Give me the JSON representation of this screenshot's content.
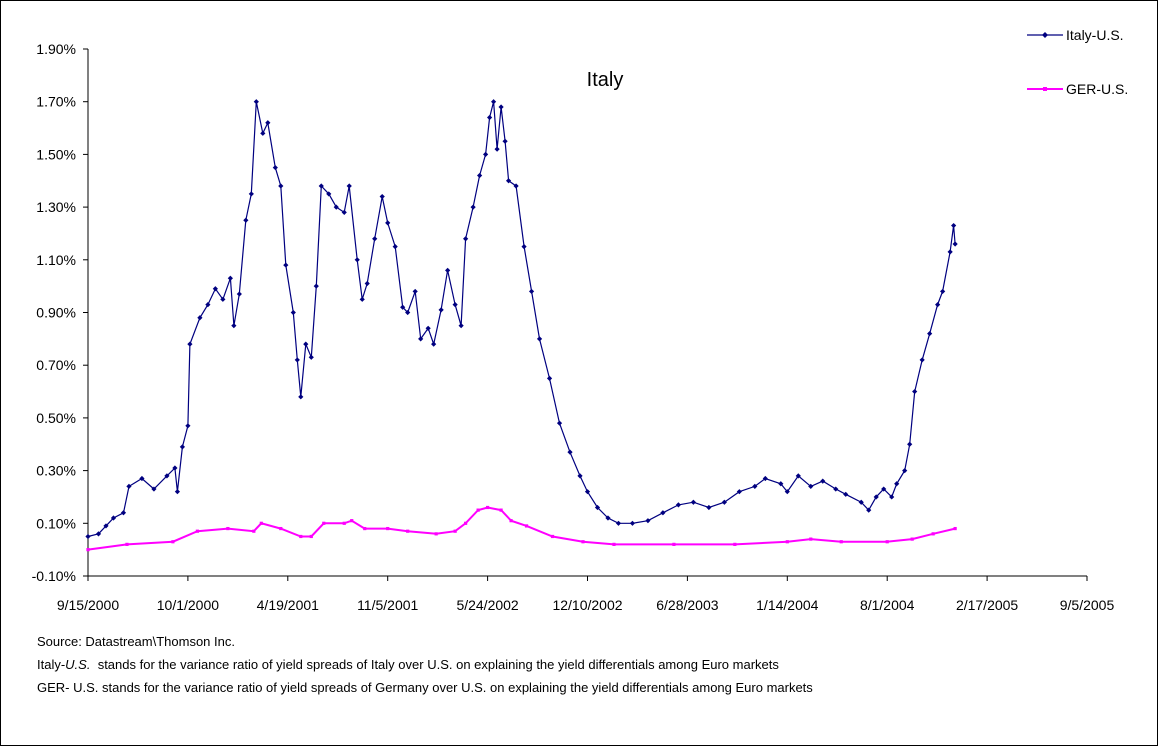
{
  "chart_data": {
    "type": "line",
    "title": "Italy",
    "xlabel": "",
    "ylabel": "",
    "x_tick_labels": [
      "9/15/2000",
      "10/1/2000",
      "4/19/2001",
      "11/5/2001",
      "5/24/2002",
      "12/10/2002",
      "6/28/2003",
      "1/14/2004",
      "8/1/2004",
      "2/17/2005",
      "9/5/2005"
    ],
    "y_tick_labels": [
      "-0.10%",
      "0.10%",
      "0.30%",
      "0.50%",
      "0.70%",
      "0.90%",
      "1.10%",
      "1.30%",
      "1.50%",
      "1.70%",
      "1.90%"
    ],
    "ylim": [
      -0.1,
      1.9
    ],
    "xlim": [
      "2000-03-15",
      "2005-09-05"
    ],
    "legend_position": "top-right",
    "grid": false,
    "series": [
      {
        "name": "Italy-U.S.",
        "color": "#000080",
        "marker": "diamond",
        "points": [
          [
            "2000-03-15",
            0.05
          ],
          [
            "2000-04-05",
            0.06
          ],
          [
            "2000-04-20",
            0.09
          ],
          [
            "2000-05-05",
            0.12
          ],
          [
            "2000-05-25",
            0.14
          ],
          [
            "2000-06-05",
            0.24
          ],
          [
            "2000-07-01",
            0.27
          ],
          [
            "2000-07-25",
            0.23
          ],
          [
            "2000-08-20",
            0.28
          ],
          [
            "2000-09-05",
            0.31
          ],
          [
            "2000-09-10",
            0.22
          ],
          [
            "2000-09-20",
            0.39
          ],
          [
            "2000-10-01",
            0.47
          ],
          [
            "2000-10-05",
            0.78
          ],
          [
            "2000-10-25",
            0.88
          ],
          [
            "2000-11-10",
            0.93
          ],
          [
            "2000-11-25",
            0.99
          ],
          [
            "2000-12-10",
            0.95
          ],
          [
            "2000-12-25",
            1.03
          ],
          [
            "2001-01-01",
            0.85
          ],
          [
            "2001-01-12",
            0.97
          ],
          [
            "2001-01-25",
            1.25
          ],
          [
            "2001-02-05",
            1.35
          ],
          [
            "2001-02-15",
            1.7
          ],
          [
            "2001-02-28",
            1.58
          ],
          [
            "2001-03-10",
            1.62
          ],
          [
            "2001-03-25",
            1.45
          ],
          [
            "2001-04-05",
            1.38
          ],
          [
            "2001-04-15",
            1.08
          ],
          [
            "2001-04-30",
            0.9
          ],
          [
            "2001-05-08",
            0.72
          ],
          [
            "2001-05-15",
            0.58
          ],
          [
            "2001-05-25",
            0.78
          ],
          [
            "2001-06-05",
            0.73
          ],
          [
            "2001-06-15",
            1.0
          ],
          [
            "2001-06-25",
            1.38
          ],
          [
            "2001-07-10",
            1.35
          ],
          [
            "2001-07-25",
            1.3
          ],
          [
            "2001-08-10",
            1.28
          ],
          [
            "2001-08-20",
            1.38
          ],
          [
            "2001-09-05",
            1.1
          ],
          [
            "2001-09-15",
            0.95
          ],
          [
            "2001-09-25",
            1.01
          ],
          [
            "2001-10-10",
            1.18
          ],
          [
            "2001-10-25",
            1.34
          ],
          [
            "2001-11-05",
            1.24
          ],
          [
            "2001-11-20",
            1.15
          ],
          [
            "2001-12-05",
            0.92
          ],
          [
            "2001-12-15",
            0.9
          ],
          [
            "2001-12-30",
            0.98
          ],
          [
            "2002-01-10",
            0.8
          ],
          [
            "2002-01-25",
            0.84
          ],
          [
            "2002-02-05",
            0.78
          ],
          [
            "2002-02-20",
            0.91
          ],
          [
            "2002-03-05",
            1.06
          ],
          [
            "2002-03-20",
            0.93
          ],
          [
            "2002-04-01",
            0.85
          ],
          [
            "2002-04-10",
            1.18
          ],
          [
            "2002-04-25",
            1.3
          ],
          [
            "2002-05-08",
            1.42
          ],
          [
            "2002-05-20",
            1.5
          ],
          [
            "2002-05-28",
            1.64
          ],
          [
            "2002-06-05",
            1.7
          ],
          [
            "2002-06-12",
            1.52
          ],
          [
            "2002-06-20",
            1.68
          ],
          [
            "2002-06-28",
            1.55
          ],
          [
            "2002-07-05",
            1.4
          ],
          [
            "2002-07-20",
            1.38
          ],
          [
            "2002-08-05",
            1.15
          ],
          [
            "2002-08-20",
            0.98
          ],
          [
            "2002-09-05",
            0.8
          ],
          [
            "2002-09-25",
            0.65
          ],
          [
            "2002-10-15",
            0.48
          ],
          [
            "2002-11-05",
            0.37
          ],
          [
            "2002-11-25",
            0.28
          ],
          [
            "2002-12-10",
            0.22
          ],
          [
            "2002-12-30",
            0.16
          ],
          [
            "2003-01-20",
            0.12
          ],
          [
            "2003-02-10",
            0.1
          ],
          [
            "2003-03-10",
            0.1
          ],
          [
            "2003-04-10",
            0.11
          ],
          [
            "2003-05-10",
            0.14
          ],
          [
            "2003-06-10",
            0.17
          ],
          [
            "2003-07-10",
            0.18
          ],
          [
            "2003-08-10",
            0.16
          ],
          [
            "2003-09-10",
            0.18
          ],
          [
            "2003-10-10",
            0.22
          ],
          [
            "2003-11-10",
            0.24
          ],
          [
            "2003-12-01",
            0.27
          ],
          [
            "2004-01-01",
            0.25
          ],
          [
            "2004-01-14",
            0.22
          ],
          [
            "2004-02-05",
            0.28
          ],
          [
            "2004-03-01",
            0.24
          ],
          [
            "2004-03-25",
            0.26
          ],
          [
            "2004-04-20",
            0.23
          ],
          [
            "2004-05-10",
            0.21
          ],
          [
            "2004-06-10",
            0.18
          ],
          [
            "2004-06-25",
            0.15
          ],
          [
            "2004-07-10",
            0.2
          ],
          [
            "2004-07-25",
            0.23
          ],
          [
            "2004-08-10",
            0.2
          ],
          [
            "2004-08-20",
            0.25
          ],
          [
            "2004-09-05",
            0.3
          ],
          [
            "2004-09-15",
            0.4
          ],
          [
            "2004-09-25",
            0.6
          ],
          [
            "2004-10-10",
            0.72
          ],
          [
            "2004-10-25",
            0.82
          ],
          [
            "2004-11-10",
            0.93
          ],
          [
            "2004-11-20",
            0.98
          ],
          [
            "2004-12-05",
            1.13
          ],
          [
            "2004-12-12",
            1.23
          ],
          [
            "2004-12-15",
            1.16
          ]
        ]
      },
      {
        "name": "GER-U.S.",
        "color": "#FF00FF",
        "marker": "square",
        "points": [
          [
            "2000-03-15",
            0.0
          ],
          [
            "2000-06-01",
            0.02
          ],
          [
            "2000-09-01",
            0.03
          ],
          [
            "2000-10-20",
            0.07
          ],
          [
            "2000-12-20",
            0.08
          ],
          [
            "2001-02-10",
            0.07
          ],
          [
            "2001-02-25",
            0.1
          ],
          [
            "2001-04-05",
            0.08
          ],
          [
            "2001-05-15",
            0.05
          ],
          [
            "2001-06-05",
            0.05
          ],
          [
            "2001-06-30",
            0.1
          ],
          [
            "2001-08-10",
            0.1
          ],
          [
            "2001-08-25",
            0.11
          ],
          [
            "2001-09-20",
            0.08
          ],
          [
            "2001-11-05",
            0.08
          ],
          [
            "2001-12-15",
            0.07
          ],
          [
            "2002-02-10",
            0.06
          ],
          [
            "2002-03-20",
            0.07
          ],
          [
            "2002-04-10",
            0.1
          ],
          [
            "2002-05-05",
            0.15
          ],
          [
            "2002-05-24",
            0.16
          ],
          [
            "2002-06-20",
            0.15
          ],
          [
            "2002-07-10",
            0.11
          ],
          [
            "2002-08-10",
            0.09
          ],
          [
            "2002-10-01",
            0.05
          ],
          [
            "2002-12-01",
            0.03
          ],
          [
            "2003-02-01",
            0.02
          ],
          [
            "2003-06-01",
            0.02
          ],
          [
            "2003-10-01",
            0.02
          ],
          [
            "2004-01-14",
            0.03
          ],
          [
            "2004-03-01",
            0.04
          ],
          [
            "2004-05-01",
            0.03
          ],
          [
            "2004-08-01",
            0.03
          ],
          [
            "2004-09-20",
            0.04
          ],
          [
            "2004-11-01",
            0.06
          ],
          [
            "2004-12-15",
            0.08
          ]
        ]
      }
    ]
  },
  "notes": {
    "source": "Source: Datastream\\Thomson Inc.",
    "line1_prefix": "Italy-",
    "line1_italic": "U.S.",
    "line1_rest": "  stands for the variance ratio of yield spreads of Italy over U.S. on explaining the yield differentials among Euro markets",
    "line2": "GER- U.S. stands for the variance ratio of yield spreads of Germany over U.S. on explaining the yield differentials among Euro markets"
  }
}
